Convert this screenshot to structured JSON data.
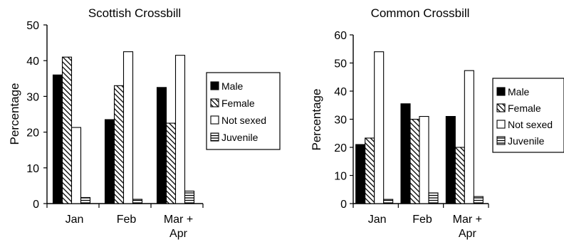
{
  "chart_data": [
    {
      "type": "bar",
      "title": "Scottish Crossbill",
      "xlabel": "",
      "ylabel": "Percentage",
      "ylim": [
        0,
        50
      ],
      "yticks": [
        0,
        10,
        20,
        30,
        40,
        50
      ],
      "categories": [
        [
          "Jan"
        ],
        [
          "Feb"
        ],
        [
          "Mar +",
          "Apr"
        ]
      ],
      "series": [
        {
          "name": "Male",
          "values": [
            36,
            23.5,
            32.5
          ]
        },
        {
          "name": "Female",
          "values": [
            41,
            33,
            22.5
          ]
        },
        {
          "name": "Not sexed",
          "values": [
            21.3,
            42.5,
            41.5
          ]
        },
        {
          "name": "Juvenile",
          "values": [
            1.7,
            1.2,
            3.5
          ]
        }
      ],
      "legend": "right",
      "grid": false
    },
    {
      "type": "bar",
      "title": "Common Crossbill",
      "xlabel": "",
      "ylabel": "Percentage",
      "ylim": [
        0,
        60
      ],
      "yticks": [
        0,
        10,
        20,
        30,
        40,
        50,
        60
      ],
      "categories": [
        [
          "Jan"
        ],
        [
          "Feb"
        ],
        [
          "Mar +",
          "Apr"
        ]
      ],
      "series": [
        {
          "name": "Male",
          "values": [
            21,
            35.5,
            31
          ]
        },
        {
          "name": "Female",
          "values": [
            23.3,
            30,
            20
          ]
        },
        {
          "name": "Not sexed",
          "values": [
            54,
            31,
            47.3
          ]
        },
        {
          "name": "Juvenile",
          "values": [
            1.5,
            3.8,
            2.5
          ]
        }
      ],
      "legend": "right",
      "grid": false
    }
  ]
}
